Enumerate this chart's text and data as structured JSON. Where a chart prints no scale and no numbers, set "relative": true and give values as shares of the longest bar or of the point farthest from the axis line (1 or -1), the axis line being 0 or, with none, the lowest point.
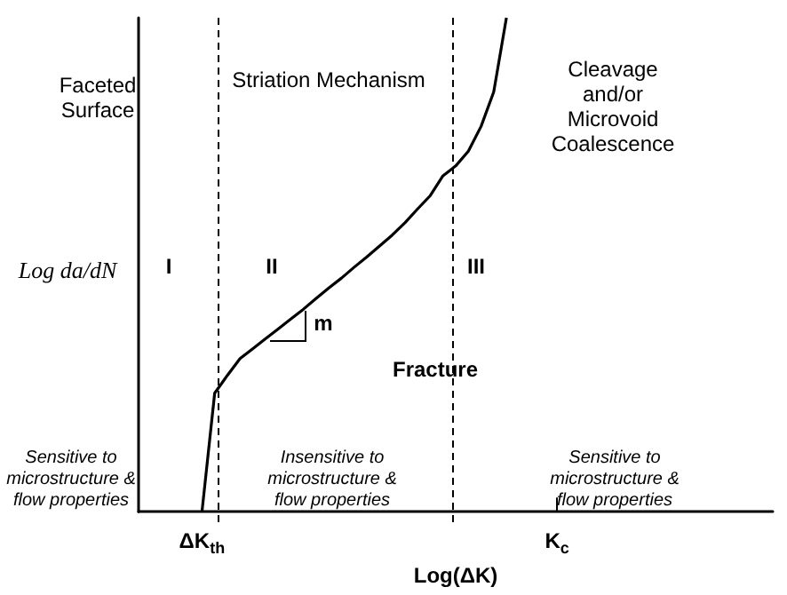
{
  "chart_data": {
    "type": "line",
    "relative": true,
    "xlabel": "Log(ΔK)",
    "ylabel": "Log da/dN",
    "categories": [
      null,
      null,
      null,
      null,
      null,
      "ΔK$_{th}$",
      null,
      null,
      null,
      null,
      null,
      null,
      null,
      null,
      null,
      null,
      null,
      null,
      null,
      null,
      null,
      null,
      null,
      null,
      null,
      null,
      null,
      null,
      null,
      null,
      null,
      null,
      null,
      "K$_{c}$",
      null,
      null,
      null,
      null,
      null,
      null,
      null,
      null,
      null,
      null,
      null,
      null,
      null,
      null,
      null,
      null,
      null
    ],
    "tick_labels": "x",
    "grid": false,
    "legend": false,
    "marker": "none",
    "line_style": "solid",
    "series": [
      {
        "color": "#000000",
        "values": [
          null,
          null,
          null,
          null,
          null,
          0,
          0.24,
          0.276,
          0.31,
          0.33,
          0.35,
          0.37,
          0.39,
          0.41,
          0.432,
          0.453,
          0.473,
          0.495,
          0.516,
          0.538,
          0.56,
          0.585,
          0.613,
          0.64,
          0.68,
          0.7,
          0.73,
          0.78,
          0.85,
          1,
          null,
          null,
          null,
          null,
          null,
          null,
          null,
          null,
          null,
          null,
          null,
          null,
          null,
          null,
          null,
          null,
          null,
          null,
          null,
          null,
          null
        ]
      }
    ],
    "annotations": [
      "Faceted\nSurface",
      "Striation Mechanism",
      "Cleavage\nand/or\nMicrovoid\nCoalescence",
      "I",
      "II",
      "III",
      "m",
      "Fracture",
      "Sensitive to\nmicrostructure &\nflow properties",
      "Insensitive to\nmicrostructure &\nflow properties",
      "Sensitive to\nmicrostructure &\nflow properties"
    ]
  }
}
